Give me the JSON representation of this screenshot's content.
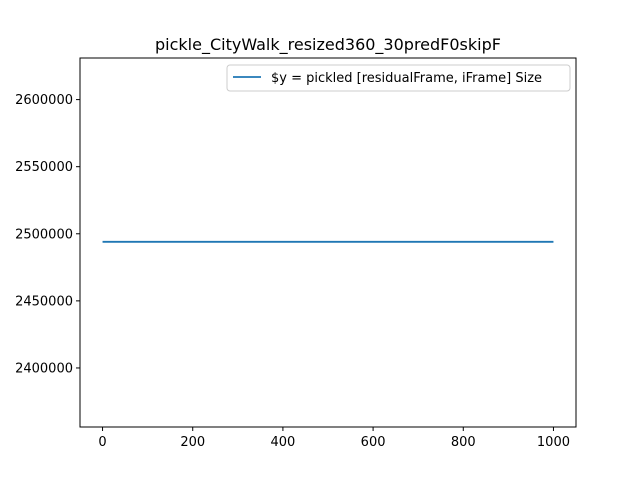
{
  "chart_data": {
    "type": "line",
    "title": "pickle_CityWalk_resized360_30predF0skipF",
    "xlabel": "",
    "ylabel": "",
    "xlim": [
      -50,
      1050
    ],
    "ylim": [
      2356000,
      2631000
    ],
    "x_ticks": [
      0,
      200,
      400,
      600,
      800,
      1000
    ],
    "x_tick_labels": [
      "0",
      "200",
      "400",
      "600",
      "800",
      "1000"
    ],
    "y_ticks": [
      2400000,
      2450000,
      2500000,
      2550000,
      2600000
    ],
    "y_tick_labels": [
      "2400000",
      "2450000",
      "2500000",
      "2550000",
      "2600000"
    ],
    "grid": false,
    "legend_position": "top-right",
    "series": [
      {
        "name": "$y = pickled [residualFrame, iFrame] Size",
        "color": "#1f77b4",
        "x": [
          0,
          1000
        ],
        "y": [
          2494000,
          2494000
        ]
      }
    ]
  }
}
